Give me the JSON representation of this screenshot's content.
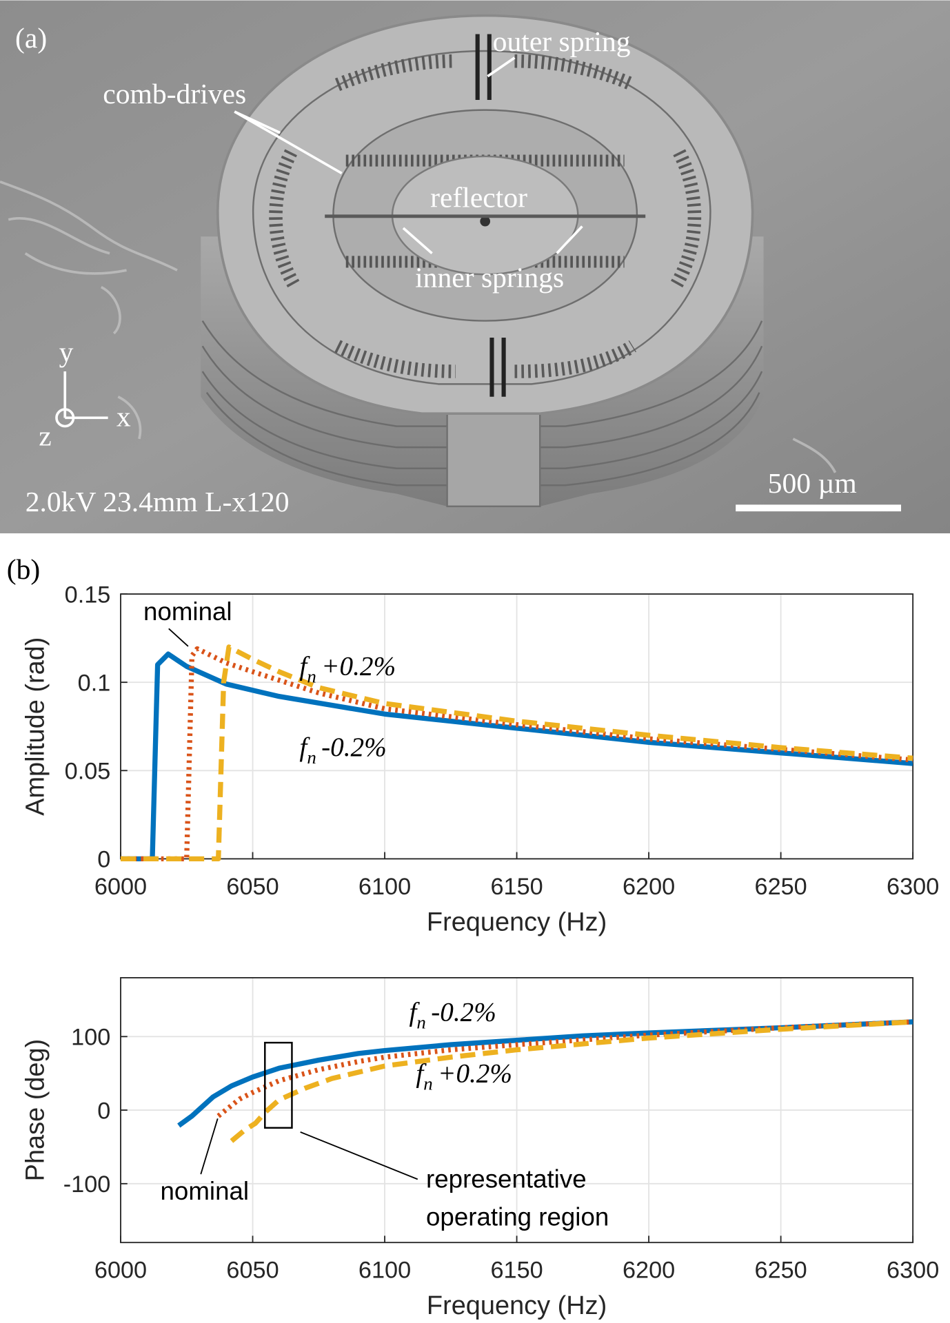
{
  "panel_a": {
    "label": "(a)",
    "annotations": {
      "outer_spring": "outer spring",
      "comb_drives": "comb-drives",
      "reflector": "reflector",
      "inner_springs": "inner springs"
    },
    "axes": {
      "x": "x",
      "y": "y",
      "z": "z"
    },
    "info": "2.0kV 23.4mm L-x120",
    "scale_bar": "500 µm"
  },
  "panel_b": {
    "label": "(b)"
  },
  "chart_data": [
    {
      "type": "line",
      "xlabel": "Frequency (Hz)",
      "ylabel": "Amplitude (rad)",
      "xlim": [
        6000,
        6300
      ],
      "ylim": [
        0,
        0.15
      ],
      "xticks": [
        6000,
        6050,
        6100,
        6150,
        6200,
        6250,
        6300
      ],
      "yticks": [
        0,
        0.05,
        0.1,
        0.15
      ],
      "grid": true,
      "series": [
        {
          "color": "#0072bd",
          "style": "solid",
          "x": [
            6000,
            6012,
            6014,
            6018,
            6025,
            6040,
            6060,
            6080,
            6100,
            6150,
            6200,
            6250,
            6300
          ],
          "values": [
            0,
            0,
            0.11,
            0.116,
            0.109,
            0.099,
            0.092,
            0.087,
            0.082,
            0.074,
            0.066,
            0.06,
            0.054
          ]
        },
        {
          "color": "#d95319",
          "style": "dotted",
          "x": [
            6000,
            6025,
            6027,
            6029,
            6040,
            6050,
            6075,
            6100,
            6150,
            6200,
            6250,
            6300
          ],
          "values": [
            0,
            0,
            0.115,
            0.119,
            0.111,
            0.106,
            0.094,
            0.085,
            0.076,
            0.068,
            0.062,
            0.056
          ]
        },
        {
          "color": "#edb120",
          "style": "dashed",
          "x": [
            6000,
            6037,
            6039,
            6041,
            6050,
            6060,
            6075,
            6100,
            6150,
            6200,
            6250,
            6300
          ],
          "values": [
            0,
            0,
            0.1,
            0.12,
            0.113,
            0.106,
            0.097,
            0.088,
            0.078,
            0.07,
            0.063,
            0.057
          ]
        }
      ],
      "annotations": [
        {
          "text": "nominal"
        },
        {
          "main": "f",
          "sub": "n",
          "suffix": "+0.2%"
        },
        {
          "main": "f",
          "sub": "n",
          "suffix": "-0.2%"
        }
      ]
    },
    {
      "type": "line",
      "xlabel": "Frequency (Hz)",
      "ylabel": "Phase (deg)",
      "xlim": [
        6000,
        6300
      ],
      "ylim": [
        -180,
        180
      ],
      "xticks": [
        6000,
        6050,
        6100,
        6150,
        6200,
        6250,
        6300
      ],
      "yticks": [
        -100,
        0,
        100
      ],
      "grid": true,
      "series": [
        {
          "color": "#0072bd",
          "style": "solid",
          "x": [
            6022,
            6027,
            6035,
            6042,
            6050,
            6060,
            6075,
            6090,
            6100,
            6125,
            6150,
            6175,
            6200,
            6250,
            6300
          ],
          "values": [
            -21,
            -8,
            18,
            33,
            45,
            57,
            68,
            77,
            81,
            89,
            95,
            101,
            105,
            112,
            120
          ]
        },
        {
          "color": "#d95319",
          "style": "dotted",
          "x": [
            6037,
            6045,
            6050,
            6060,
            6075,
            6090,
            6100,
            6125,
            6150,
            6200,
            6250,
            6300
          ],
          "values": [
            -8,
            15,
            24,
            40,
            55,
            66,
            72,
            82,
            89,
            102,
            112,
            120
          ]
        },
        {
          "color": "#edb120",
          "style": "dashed",
          "x": [
            6042,
            6047,
            6051,
            6055,
            6060,
            6070,
            6080,
            6100,
            6125,
            6150,
            6200,
            6250,
            6300
          ],
          "values": [
            -42,
            -27,
            -18,
            -2,
            14,
            30,
            43,
            60,
            72,
            82,
            98,
            110,
            120
          ]
        }
      ],
      "annotations": [
        {
          "main": "f",
          "sub": "n",
          "suffix": "-0.2%"
        },
        {
          "main": "f",
          "sub": "n",
          "suffix": "+0.2%"
        },
        {
          "text": "nominal"
        },
        {
          "lines": [
            "representative",
            "operating region"
          ]
        }
      ]
    }
  ]
}
